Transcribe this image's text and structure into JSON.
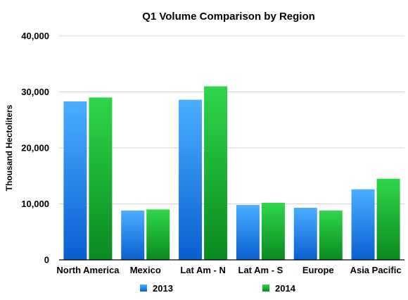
{
  "chart_data": {
    "type": "bar",
    "title": "Q1 Volume Comparison by Region",
    "xlabel": "",
    "ylabel": "Thousand Hectoliters",
    "ylim": [
      0,
      40000
    ],
    "yticks": [
      "0",
      "10,000",
      "20,000",
      "30,000",
      "40,000"
    ],
    "categories": [
      "North America",
      "Mexico",
      "Lat Am - N",
      "Lat Am - S",
      "Europe",
      "Asia Pacific"
    ],
    "series": [
      {
        "name": "2013",
        "color": "#1a7ef0",
        "values": [
          28300,
          8800,
          28600,
          9800,
          9300,
          12600
        ]
      },
      {
        "name": "2014",
        "color": "#12b32a",
        "values": [
          29000,
          9000,
          31000,
          10200,
          8800,
          14500
        ]
      }
    ],
    "grid": true,
    "legend_position": "bottom"
  }
}
